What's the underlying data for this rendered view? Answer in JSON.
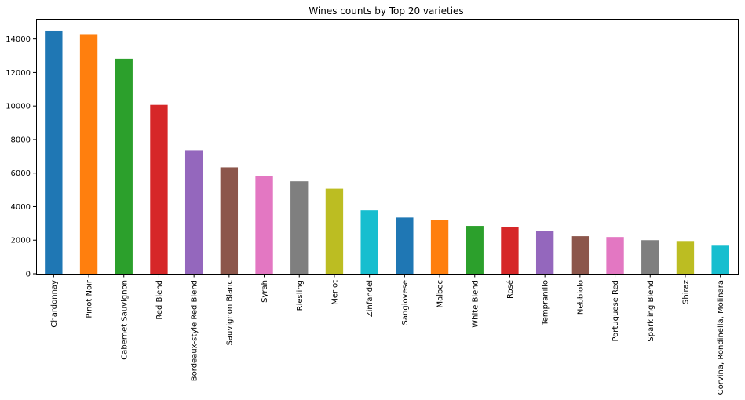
{
  "chart_data": {
    "type": "bar",
    "title": "Wines counts by Top 20 varieties",
    "xlabel": "",
    "ylabel": "",
    "categories": [
      "Chardonnay",
      "Pinot Noir",
      "Cabernet Sauvignon",
      "Red Blend",
      "Bordeaux-style Red Blend",
      "Sauvignon Blanc",
      "Syrah",
      "Riesling",
      "Merlot",
      "Zinfandel",
      "Sangiovese",
      "Malbec",
      "White Blend",
      "Rosé",
      "Tempranillo",
      "Nebbiolo",
      "Portuguese Red",
      "Sparkling Blend",
      "Shiraz",
      "Corvina, Rondinella, Molinara"
    ],
    "values": [
      14500,
      14290,
      12820,
      10070,
      7370,
      6340,
      5830,
      5510,
      5070,
      3780,
      3350,
      3210,
      2850,
      2790,
      2560,
      2240,
      2190,
      2000,
      1950,
      1670
    ],
    "colors": [
      "#1f77b4",
      "#ff7f0e",
      "#2ca02c",
      "#d62728",
      "#9467bd",
      "#8c564b",
      "#e377c2",
      "#7f7f7f",
      "#bcbd22",
      "#17becf",
      "#1f77b4",
      "#ff7f0e",
      "#2ca02c",
      "#d62728",
      "#9467bd",
      "#8c564b",
      "#e377c2",
      "#7f7f7f",
      "#bcbd22",
      "#17becf"
    ],
    "ylim": [
      0,
      15200
    ],
    "yticks": [
      0,
      2000,
      4000,
      6000,
      8000,
      10000,
      12000,
      14000
    ],
    "grid": false,
    "legend": "none"
  }
}
